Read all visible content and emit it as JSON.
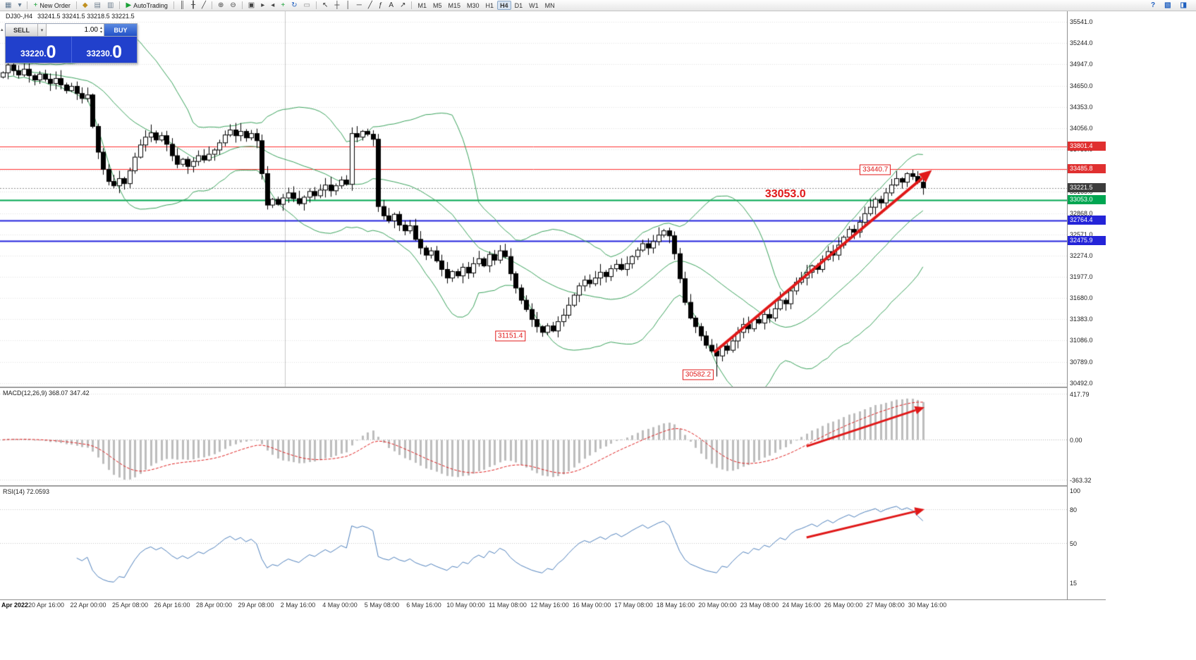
{
  "window": {
    "symbol_period": "DJ30-,H4",
    "ohlc": "33241.5 33241.5 33218.5 33221.5"
  },
  "icons": {
    "collapse": "▴",
    "dropdown": "▾",
    "spin_up": "▴",
    "spin_down": "▾"
  },
  "toolbar": {
    "groups": [
      {
        "buttons": [
          {
            "name": "new-chart",
            "glyph": "▦",
            "color": "#607890"
          },
          {
            "name": "profiles",
            "glyph": "▾",
            "color": "#607890"
          }
        ]
      },
      {
        "buttons": [
          {
            "name": "new-order",
            "glyph": "+",
            "color": "#18a035",
            "label": "New Order"
          }
        ]
      },
      {
        "buttons": [
          {
            "name": "market-watch",
            "glyph": "◆",
            "color": "#c09020"
          },
          {
            "name": "data-window",
            "glyph": "▤",
            "color": "#708090"
          },
          {
            "name": "navigator",
            "glyph": "▥",
            "color": "#708090"
          }
        ]
      },
      {
        "buttons": [
          {
            "name": "autotrading",
            "glyph": "▶",
            "color": "#18a035",
            "label": "AutoTrading"
          }
        ]
      },
      {
        "buttons": [
          {
            "name": "bar-chart",
            "glyph": "║",
            "color": "#444444"
          },
          {
            "name": "candlestick-chart",
            "glyph": "╂",
            "color": "#444444"
          },
          {
            "name": "line-chart",
            "glyph": "╱",
            "color": "#444444"
          }
        ]
      },
      {
        "buttons": [
          {
            "name": "zoom-in",
            "glyph": "⊕",
            "color": "#444444"
          },
          {
            "name": "zoom-out",
            "glyph": "⊖",
            "color": "#444444"
          }
        ]
      },
      {
        "buttons": [
          {
            "name": "tile-windows",
            "glyph": "▣",
            "color": "#444444"
          },
          {
            "name": "auto-scroll",
            "glyph": "▸",
            "color": "#444444"
          },
          {
            "name": "chart-shift",
            "glyph": "◂",
            "color": "#444444"
          },
          {
            "name": "indicators",
            "glyph": "+",
            "color": "#18a035"
          },
          {
            "name": "cycle",
            "glyph": "↻",
            "color": "#2060c0"
          },
          {
            "name": "template",
            "glyph": "▭",
            "color": "#888888"
          }
        ]
      },
      {
        "buttons": [
          {
            "name": "cursor",
            "glyph": "↖",
            "color": "#333333"
          },
          {
            "name": "crosshair",
            "glyph": "┼",
            "color": "#333333"
          },
          {
            "name": "vertical-line",
            "glyph": "│",
            "color": "#333333"
          },
          {
            "name": "horizontal-line",
            "glyph": "─",
            "color": "#333333"
          },
          {
            "name": "trendline",
            "glyph": "╱",
            "color": "#333333"
          },
          {
            "name": "fibonacci",
            "glyph": "ƒ",
            "color": "#333333"
          },
          {
            "name": "text",
            "glyph": "A",
            "color": "#333333"
          },
          {
            "name": "arrows",
            "glyph": "↗",
            "color": "#333333"
          }
        ]
      }
    ],
    "timeframes": {
      "items": [
        "M1",
        "M5",
        "M15",
        "M30",
        "H1",
        "H4",
        "D1",
        "W1",
        "MN"
      ],
      "active": "H4"
    },
    "right_buttons": [
      {
        "name": "help",
        "glyph": "?",
        "color": "#2060c0"
      },
      {
        "name": "layout",
        "glyph": "▧",
        "color": "#2060c0"
      },
      {
        "name": "panel",
        "glyph": "◨",
        "color": "#2060c0"
      }
    ]
  },
  "trade_panel": {
    "sell_label": "SELL",
    "buy_label": "BUY",
    "volume": "1.00",
    "sell_price_main": "33220.",
    "sell_price_big": "0",
    "buy_price_main": "33230.",
    "buy_price_big": "0"
  },
  "indicators": {
    "macd_label": "MACD(12,26,9) 368.07 347.42",
    "rsi_label": "RSI(14) 72.0593"
  },
  "chart_data": {
    "type": "candlestick",
    "symbol": "DJ30-",
    "timeframe": "H4",
    "main": {
      "ylim": [
        30440,
        35690
      ],
      "y_ticks": [
        "35541.0",
        "35244.0",
        "34947.0",
        "34650.0",
        "34353.0",
        "34056.0",
        "33759.0",
        "33462.0",
        "33165.0",
        "32868.0",
        "32571.0",
        "32274.0",
        "31977.0",
        "31680.0",
        "31383.0",
        "31086.0",
        "30789.0",
        "30492.0"
      ],
      "levels": [
        {
          "price": 33801.4,
          "label": "33801.4",
          "color": "#ff3030",
          "width": 1,
          "dash": false,
          "tag_bg": "#e03030"
        },
        {
          "price": 33485.8,
          "label": "33485.8",
          "color": "#ff3030",
          "width": 1,
          "dash": false,
          "tag_bg": "#e03030"
        },
        {
          "price": 33221.5,
          "label": "33221.5",
          "color": "#909090",
          "width": 1,
          "dash": true,
          "tag_bg": "#3c3c3c"
        },
        {
          "price": 33053.0,
          "label": "33053.0",
          "color": "#00a651",
          "width": 2,
          "dash": false,
          "tag_bg": "#00a651"
        },
        {
          "price": 32764.4,
          "label": "32764.4",
          "color": "#2222dd",
          "width": 2,
          "dash": false,
          "tag_bg": "#2424d8"
        },
        {
          "price": 32475.9,
          "label": "32475.9",
          "color": "#2222dd",
          "width": 2,
          "dash": false,
          "tag_bg": "#2424d8"
        }
      ]
    },
    "candles": {
      "closes": [
        34830,
        34940,
        34860,
        34800,
        34880,
        34790,
        34730,
        34810,
        34740,
        34680,
        34750,
        34660,
        34580,
        34640,
        34540,
        34470,
        34520,
        34080,
        33720,
        33480,
        33310,
        33250,
        33350,
        33280,
        33460,
        33650,
        33820,
        33930,
        33990,
        33890,
        33950,
        33830,
        33670,
        33550,
        33620,
        33520,
        33590,
        33670,
        33610,
        33690,
        33750,
        33850,
        33960,
        34030,
        33950,
        34010,
        33920,
        33980,
        33880,
        33420,
        32980,
        33060,
        32990,
        33080,
        33150,
        33070,
        33000,
        33090,
        33170,
        33110,
        33190,
        33260,
        33180,
        33250,
        33330,
        33270,
        33980,
        33930,
        34010,
        33970,
        33900,
        32960,
        32830,
        32760,
        32850,
        32700,
        32620,
        32690,
        32500,
        32380,
        32280,
        32340,
        32200,
        32080,
        31960,
        32050,
        31990,
        32110,
        32030,
        32160,
        32230,
        32130,
        32290,
        32210,
        32340,
        32260,
        32020,
        31820,
        31650,
        31520,
        31380,
        31280,
        31200,
        31290,
        31220,
        31350,
        31440,
        31580,
        31720,
        31850,
        31930,
        31880,
        31960,
        32040,
        31980,
        32090,
        32150,
        32080,
        32160,
        32260,
        32350,
        32440,
        32380,
        32470,
        32560,
        32620,
        32550,
        32300,
        31950,
        31620,
        31400,
        31280,
        31150,
        31020,
        30940,
        30870,
        31010,
        30950,
        31080,
        31200,
        31310,
        31250,
        31380,
        31330,
        31450,
        31400,
        31530,
        31650,
        31600,
        31780,
        31900,
        31960,
        32040,
        32130,
        32080,
        32220,
        32330,
        32280,
        32420,
        32530,
        32640,
        32600,
        32740,
        32860,
        32950,
        33060,
        33010,
        33150,
        33260,
        33350,
        33300,
        33420,
        33380,
        33300,
        33221.5
      ],
      "special_high": {
        "bar": 171,
        "price": 33440.7
      },
      "special_low": {
        "bar": 135,
        "price": 30582.2
      },
      "first_high": {
        "bar": 1,
        "price": 34995
      }
    },
    "bollinger": {
      "period": 20,
      "deviation": 2,
      "color": "#3aa35c"
    },
    "macd": {
      "params": [
        12,
        26,
        9
      ],
      "range": [
        -363.32,
        417.79
      ],
      "y_ticks": [
        "417.79",
        "0.00",
        "-363.32"
      ]
    },
    "rsi": {
      "period": 14,
      "levels": [
        80,
        50
      ],
      "y_ticks": [
        "100",
        "80",
        "50",
        "15"
      ],
      "line_color": "#4f81bd"
    },
    "time_labels": [
      "Apr 2022",
      "20 Apr 16:00",
      "22 Apr 00:00",
      "25 Apr 08:00",
      "26 Apr 16:00",
      "28 Apr 00:00",
      "29 Apr 08:00",
      "2 May 16:00",
      "4 May 00:00",
      "5 May 08:00",
      "6 May 16:00",
      "10 May 00:00",
      "11 May 08:00",
      "12 May 16:00",
      "16 May 00:00",
      "17 May 08:00",
      "18 May 16:00",
      "20 May 00:00",
      "23 May 08:00",
      "24 May 16:00",
      "26 May 00:00",
      "27 May 08:00",
      "30 May 16:00"
    ]
  },
  "annotations": {
    "color": "#e01818",
    "vline_bar": 53.9,
    "price_boxes": [
      {
        "text": "33440.7",
        "bar": 165.5,
        "price": 33470
      },
      {
        "text": "31151.4",
        "bar": 96.5,
        "price": 31145
      },
      {
        "text": "30582.2",
        "bar": 132.0,
        "price": 30610
      }
    ],
    "big_text": {
      "text": "33053.0",
      "bar": 148.5,
      "price": 33125
    },
    "arrows": {
      "main": {
        "x1_bar": 135.0,
        "y1_price": 30920,
        "x2_bar": 176.2,
        "y2_price": 33470,
        "width": 4
      },
      "macd": {
        "x1_bar": 152.5,
        "y1_val": -60,
        "x2_bar": 174.8,
        "y2_val": 295,
        "width": 3
      },
      "rsi": {
        "x1_bar": 152.5,
        "y1_val": 55,
        "x2_bar": 174.8,
        "y2_val": 80,
        "width": 3
      }
    }
  }
}
